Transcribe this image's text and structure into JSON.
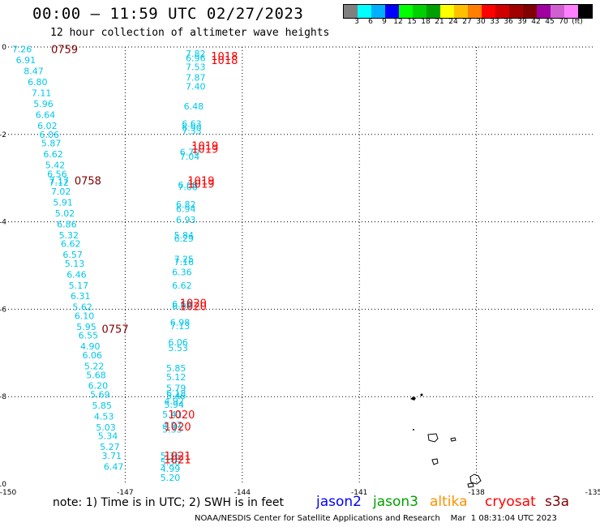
{
  "title": "00:00 – 11:59 UTC 02/27/2023",
  "subtitle": "12 hour collection of altimeter wave heights",
  "legend": {
    "colors": [
      "#808080",
      "#00ffff",
      "#00b0ff",
      "#0000ff",
      "#00ff00",
      "#00d000",
      "#00a000",
      "#ffff00",
      "#ffc000",
      "#ff8000",
      "#ff0000",
      "#d00000",
      "#a00000",
      "#800000",
      "#a000a0",
      "#d060d0",
      "#ff80ff",
      "#000000"
    ],
    "labels": [
      "3",
      "6",
      "9",
      "12",
      "15",
      "18",
      "21",
      "24",
      "27",
      "30",
      "33",
      "36",
      "39",
      "42",
      "45",
      "70",
      "(ft)"
    ],
    "colors_note": "first swatch gray then colour bins"
  },
  "axes": {
    "x_ticks": [
      "-150",
      "-147",
      "-144",
      "-141",
      "-138",
      "-135"
    ],
    "y_ticks": [
      "0",
      "-2",
      "-4",
      "-6",
      "-8",
      "-10"
    ]
  },
  "chart_data": {
    "type": "scatter",
    "x_range": [
      -150,
      -135
    ],
    "y_range": [
      -10,
      0
    ],
    "grid": "dotted",
    "track_times": [
      {
        "label": "0759",
        "lon": -148.9,
        "lat": -0.05,
        "color": "#800000"
      },
      {
        "label": "0758",
        "lon": -148.3,
        "lat": -3.05,
        "color": "#800000"
      },
      {
        "label": "0757",
        "lon": -147.6,
        "lat": -6.45,
        "color": "#800000"
      },
      {
        "label": "1018",
        "lon": -144.8,
        "lat": -0.2,
        "color": "#ff0000"
      },
      {
        "label": "1018",
        "lon": -144.8,
        "lat": -0.3,
        "color": "#ff0000"
      },
      {
        "label": "1019",
        "lon": -145.3,
        "lat": -2.25,
        "color": "#ff0000"
      },
      {
        "label": "1019",
        "lon": -145.3,
        "lat": -2.33,
        "color": "#ff0000"
      },
      {
        "label": "1019",
        "lon": -145.4,
        "lat": -3.05,
        "color": "#ff0000"
      },
      {
        "label": "1019",
        "lon": -145.4,
        "lat": -3.13,
        "color": "#ff0000"
      },
      {
        "label": "1020",
        "lon": -145.6,
        "lat": -5.85,
        "color": "#ff0000"
      },
      {
        "label": "1020",
        "lon": -145.6,
        "lat": -5.93,
        "color": "#ff0000"
      },
      {
        "label": "1020",
        "lon": -145.9,
        "lat": -8.4,
        "color": "#ff0000"
      },
      {
        "label": "1020",
        "lon": -146.0,
        "lat": -8.68,
        "color": "#ff0000"
      },
      {
        "label": "1021",
        "lon": -146.0,
        "lat": -9.35,
        "color": "#ff0000"
      },
      {
        "label": "1021",
        "lon": -146.0,
        "lat": -9.43,
        "color": "#ff0000"
      }
    ],
    "track_a_swh": [
      {
        "v": "7.26",
        "lon": -149.9,
        "lat": -0.05
      },
      {
        "v": "6.91",
        "lon": -149.8,
        "lat": -0.3
      },
      {
        "v": "8.47",
        "lon": -149.6,
        "lat": -0.55
      },
      {
        "v": "6.80",
        "lon": -149.5,
        "lat": -0.8
      },
      {
        "v": "7.11",
        "lon": -149.4,
        "lat": -1.05
      },
      {
        "v": "5.96",
        "lon": -149.35,
        "lat": -1.3
      },
      {
        "v": "6.64",
        "lon": -149.3,
        "lat": -1.55
      },
      {
        "v": "6.02",
        "lon": -149.25,
        "lat": -1.8
      },
      {
        "v": "6.06",
        "lon": -149.2,
        "lat": -2.0
      },
      {
        "v": "5.87",
        "lon": -149.15,
        "lat": -2.2
      },
      {
        "v": "6.62",
        "lon": -149.1,
        "lat": -2.45
      },
      {
        "v": "5.42",
        "lon": -149.05,
        "lat": -2.7
      },
      {
        "v": "6.56",
        "lon": -149.0,
        "lat": -2.9
      },
      {
        "v": "7.17",
        "lon": -148.95,
        "lat": -3.05
      },
      {
        "v": "7.12",
        "lon": -148.95,
        "lat": -3.1
      },
      {
        "v": "7.02",
        "lon": -148.9,
        "lat": -3.3
      },
      {
        "v": "5.91",
        "lon": -148.85,
        "lat": -3.55
      },
      {
        "v": "5.02",
        "lon": -148.8,
        "lat": -3.8
      },
      {
        "v": "6.86",
        "lon": -148.75,
        "lat": -4.05
      },
      {
        "v": "5.32",
        "lon": -148.7,
        "lat": -4.3
      },
      {
        "v": "6.62",
        "lon": -148.65,
        "lat": -4.5
      },
      {
        "v": "6.57",
        "lon": -148.6,
        "lat": -4.75
      },
      {
        "v": "5.13",
        "lon": -148.55,
        "lat": -4.95
      },
      {
        "v": "6.46",
        "lon": -148.5,
        "lat": -5.2
      },
      {
        "v": "5.17",
        "lon": -148.45,
        "lat": -5.45
      },
      {
        "v": "6.31",
        "lon": -148.4,
        "lat": -5.7
      },
      {
        "v": "5.62",
        "lon": -148.35,
        "lat": -5.95
      },
      {
        "v": "6.10",
        "lon": -148.3,
        "lat": -6.15
      },
      {
        "v": "5.95",
        "lon": -148.25,
        "lat": -6.4
      },
      {
        "v": "6.55",
        "lon": -148.2,
        "lat": -6.6
      },
      {
        "v": "4.90",
        "lon": -148.15,
        "lat": -6.85
      },
      {
        "v": "6.06",
        "lon": -148.1,
        "lat": -7.05
      },
      {
        "v": "5.22",
        "lon": -148.05,
        "lat": -7.3
      },
      {
        "v": "5.68",
        "lon": -148.0,
        "lat": -7.5
      },
      {
        "v": "6.20",
        "lon": -147.95,
        "lat": -7.75
      },
      {
        "v": "5.69",
        "lon": -147.9,
        "lat": -7.95
      },
      {
        "v": "5.85",
        "lon": -147.85,
        "lat": -8.2
      },
      {
        "v": "4.53",
        "lon": -147.8,
        "lat": -8.45
      },
      {
        "v": "5.03",
        "lon": -147.75,
        "lat": -8.7
      },
      {
        "v": "5.34",
        "lon": -147.7,
        "lat": -8.9
      },
      {
        "v": "5.27",
        "lon": -147.65,
        "lat": -9.15
      },
      {
        "v": "3.71",
        "lon": -147.6,
        "lat": -9.35
      },
      {
        "v": "6.47",
        "lon": -147.55,
        "lat": -9.6
      }
    ],
    "track_b_swh": [
      {
        "v": "7.82",
        "lon": -145.45,
        "lat": -0.15
      },
      {
        "v": "6.96",
        "lon": -145.45,
        "lat": -0.25
      },
      {
        "v": "7.53",
        "lon": -145.45,
        "lat": -0.45
      },
      {
        "v": "7.87",
        "lon": -145.45,
        "lat": -0.7
      },
      {
        "v": "7.40",
        "lon": -145.45,
        "lat": -0.9
      },
      {
        "v": "6.48",
        "lon": -145.5,
        "lat": -1.35
      },
      {
        "v": "6.63",
        "lon": -145.55,
        "lat": -1.75
      },
      {
        "v": "6.90",
        "lon": -145.55,
        "lat": -1.85
      },
      {
        "v": "7.33",
        "lon": -145.55,
        "lat": -1.92
      },
      {
        "v": "6.70",
        "lon": -145.6,
        "lat": -2.4
      },
      {
        "v": "7.04",
        "lon": -145.6,
        "lat": -2.5
      },
      {
        "v": "6.68",
        "lon": -145.65,
        "lat": -3.15
      },
      {
        "v": "7.08",
        "lon": -145.65,
        "lat": -3.2
      },
      {
        "v": "6.82",
        "lon": -145.7,
        "lat": -3.6
      },
      {
        "v": "6.94",
        "lon": -145.7,
        "lat": -3.7
      },
      {
        "v": "6.93",
        "lon": -145.7,
        "lat": -3.95
      },
      {
        "v": "5.84",
        "lon": -145.75,
        "lat": -4.3
      },
      {
        "v": "6.29",
        "lon": -145.75,
        "lat": -4.38
      },
      {
        "v": "7.25",
        "lon": -145.75,
        "lat": -4.85
      },
      {
        "v": "7.16",
        "lon": -145.75,
        "lat": -4.92
      },
      {
        "v": "6.36",
        "lon": -145.8,
        "lat": -5.15
      },
      {
        "v": "6.62",
        "lon": -145.8,
        "lat": -5.45
      },
      {
        "v": "6.60",
        "lon": -145.8,
        "lat": -5.88
      },
      {
        "v": "6.84",
        "lon": -145.8,
        "lat": -5.93
      },
      {
        "v": "6.98",
        "lon": -145.85,
        "lat": -6.3
      },
      {
        "v": "7.13",
        "lon": -145.85,
        "lat": -6.38
      },
      {
        "v": "6.06",
        "lon": -145.9,
        "lat": -6.75
      },
      {
        "v": "5.53",
        "lon": -145.9,
        "lat": -6.88
      },
      {
        "v": "5.85",
        "lon": -145.95,
        "lat": -7.35
      },
      {
        "v": "5.12",
        "lon": -145.95,
        "lat": -7.55
      },
      {
        "v": "5.79",
        "lon": -145.95,
        "lat": -7.8
      },
      {
        "v": "6.18",
        "lon": -145.95,
        "lat": -7.92
      },
      {
        "v": "5.46",
        "lon": -145.95,
        "lat": -7.98
      },
      {
        "v": "4.92",
        "lon": -146.0,
        "lat": -8.1
      },
      {
        "v": "5.94",
        "lon": -146.0,
        "lat": -8.18
      },
      {
        "v": "5.41",
        "lon": -146.05,
        "lat": -8.4
      },
      {
        "v": "4.97",
        "lon": -146.05,
        "lat": -8.65
      },
      {
        "v": "5.33",
        "lon": -146.05,
        "lat": -8.75
      },
      {
        "v": "5.36",
        "lon": -146.1,
        "lat": -9.35
      },
      {
        "v": "5.36",
        "lon": -146.1,
        "lat": -9.5
      },
      {
        "v": "4.99",
        "lon": -146.1,
        "lat": -9.65
      },
      {
        "v": "5.20",
        "lon": -146.1,
        "lat": -9.85
      }
    ]
  },
  "note": {
    "text": "note:  1) Time is in UTC; 2) SWH is in feet",
    "sats": [
      {
        "name": "jason2",
        "color": "#0000ff"
      },
      {
        "name": "jason3",
        "color": "#00a000"
      },
      {
        "name": "altika",
        "color": "#ff9000"
      },
      {
        "name": "cryosat",
        "color": "#ff0000"
      },
      {
        "name": "s3a",
        "color": "#800000"
      }
    ]
  },
  "credit": "NOAA/NESDIS Center for Satellite Applications and Research    Mar  1 08:31:04 UTC 2023"
}
